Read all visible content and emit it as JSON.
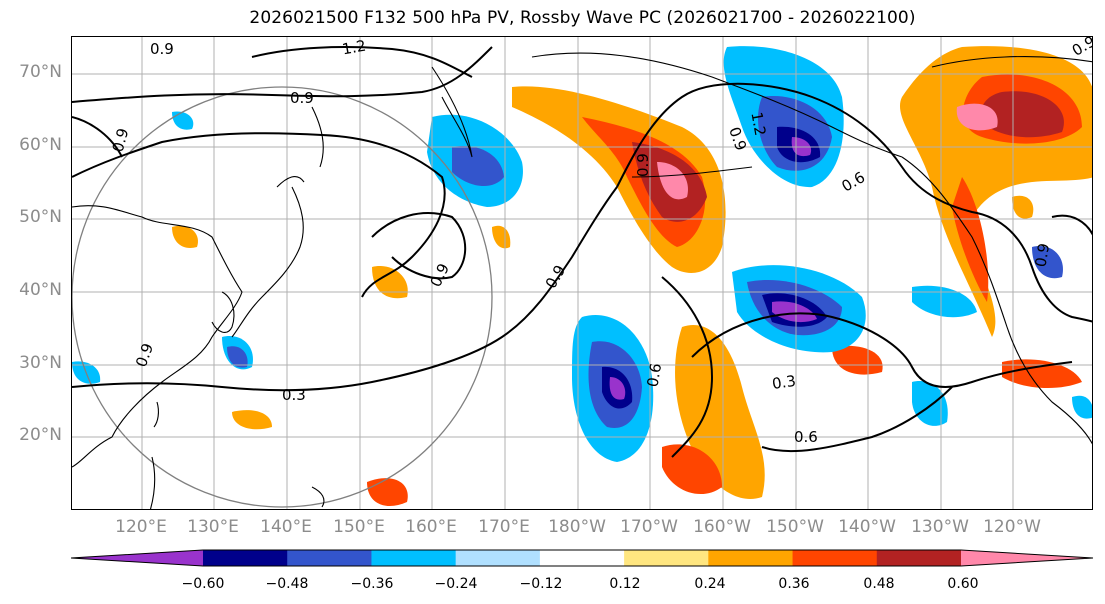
{
  "title": "2026021500 F132 500 hPa PV, Rossby Wave PC (2026021700 - 2026022100)",
  "latitude_labels": [
    "70°N",
    "60°N",
    "50°N",
    "40°N",
    "30°N",
    "20°N"
  ],
  "longitude_labels": [
    "120°E",
    "130°E",
    "140°E",
    "150°E",
    "160°E",
    "170°E",
    "180°W",
    "170°W",
    "160°W",
    "150°W",
    "140°W",
    "130°W",
    "120°W"
  ],
  "contour_labels": [
    "0.9",
    "1.2",
    "0.9",
    "0.9",
    "0.9",
    "0.9",
    "0.3",
    "0.9",
    "0.9",
    "1.2",
    "0.6",
    "0.9",
    "0.9",
    "0.9",
    "0.6",
    "0.3",
    "0.6"
  ],
  "colorbar": {
    "tick_labels": [
      "−0.60",
      "−0.48",
      "−0.36",
      "−0.24",
      "−0.12",
      "0.12",
      "0.24",
      "0.36",
      "0.48",
      "0.60"
    ],
    "colors": [
      "#9933cc",
      "#00008b",
      "#3355cc",
      "#00bfff",
      "#b0e0ff",
      "#ffffff",
      "#ffe680",
      "#ffa500",
      "#ff4500",
      "#b22222",
      "#ff88aa"
    ]
  },
  "colors": {
    "coastline": "#000000",
    "grid": "#b0b0b0",
    "circle": "#808080",
    "label_gray": "#8c8c8c"
  }
}
